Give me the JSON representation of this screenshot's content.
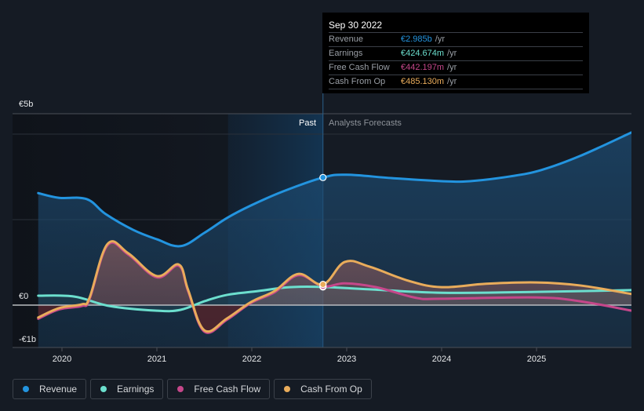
{
  "tooltip": {
    "date": "Sep 30 2022",
    "rows": [
      {
        "label": "Revenue",
        "value": "€2.985b",
        "unit": "/yr",
        "color": "#2394df"
      },
      {
        "label": "Earnings",
        "value": "€424.674m",
        "unit": "/yr",
        "color": "#6cdfce"
      },
      {
        "label": "Free Cash Flow",
        "value": "€442.197m",
        "unit": "/yr",
        "color": "#c5478a"
      },
      {
        "label": "Cash From Op",
        "value": "€485.130m",
        "unit": "/yr",
        "color": "#e9ac5b"
      }
    ]
  },
  "legend": [
    {
      "label": "Revenue",
      "color": "#2394df"
    },
    {
      "label": "Earnings",
      "color": "#6cdfce"
    },
    {
      "label": "Free Cash Flow",
      "color": "#c5478a"
    },
    {
      "label": "Cash From Op",
      "color": "#e9ac5b"
    }
  ],
  "chart_data": {
    "type": "line",
    "title": "",
    "xlabel": "",
    "ylabel": "",
    "x_ticks": [
      "2020",
      "2021",
      "2022",
      "2023",
      "2024",
      "2025"
    ],
    "y_tick_labels": {
      "top": "€5b",
      "zero": "€0",
      "bottom": "-€1b"
    },
    "xlim": [
      2019.75,
      2026.0
    ],
    "ylim": [
      -1,
      5
    ],
    "past_label": "Past",
    "forecast_label": "Analysts Forecasts",
    "divider_x": 2022.75,
    "highlight_start_x": 2021.75,
    "units": "EUR billions",
    "series": [
      {
        "name": "Revenue",
        "color": "#2394df",
        "points": [
          [
            2019.75,
            2.62
          ],
          [
            2019.97,
            2.51
          ],
          [
            2020.26,
            2.48
          ],
          [
            2020.46,
            2.13
          ],
          [
            2020.75,
            1.76
          ],
          [
            2021.0,
            1.54
          ],
          [
            2021.25,
            1.38
          ],
          [
            2021.5,
            1.69
          ],
          [
            2021.74,
            2.04
          ],
          [
            2021.99,
            2.33
          ],
          [
            2022.33,
            2.66
          ],
          [
            2022.75,
            2.985
          ],
          [
            2023.0,
            3.05
          ],
          [
            2023.48,
            2.97
          ],
          [
            2024.0,
            2.9
          ],
          [
            2024.3,
            2.9
          ],
          [
            2024.72,
            3.01
          ],
          [
            2025.05,
            3.16
          ],
          [
            2025.46,
            3.49
          ],
          [
            2026.0,
            4.04
          ]
        ]
      },
      {
        "name": "Earnings",
        "color": "#6cdfce",
        "points": [
          [
            2019.75,
            0.22
          ],
          [
            2020.13,
            0.2
          ],
          [
            2020.5,
            -0.02
          ],
          [
            2021.0,
            -0.13
          ],
          [
            2021.25,
            -0.11
          ],
          [
            2021.5,
            0.09
          ],
          [
            2021.74,
            0.24
          ],
          [
            2022.07,
            0.33
          ],
          [
            2022.4,
            0.42
          ],
          [
            2022.75,
            0.425
          ],
          [
            2023.24,
            0.37
          ],
          [
            2024.0,
            0.29
          ],
          [
            2025.0,
            0.31
          ],
          [
            2026.0,
            0.35
          ]
        ]
      },
      {
        "name": "Free Cash Flow",
        "color": "#c5478a",
        "points": [
          [
            2019.75,
            -0.32
          ],
          [
            2019.97,
            -0.1
          ],
          [
            2020.21,
            -0.02
          ],
          [
            2020.29,
            0.14
          ],
          [
            2020.48,
            1.4
          ],
          [
            2020.7,
            1.18
          ],
          [
            2021.0,
            0.65
          ],
          [
            2021.23,
            0.92
          ],
          [
            2021.33,
            0.32
          ],
          [
            2021.5,
            -0.62
          ],
          [
            2021.74,
            -0.34
          ],
          [
            2021.99,
            0.05
          ],
          [
            2022.24,
            0.3
          ],
          [
            2022.49,
            0.7
          ],
          [
            2022.75,
            0.442
          ],
          [
            2022.98,
            0.51
          ],
          [
            2023.31,
            0.42
          ],
          [
            2023.73,
            0.17
          ],
          [
            2024.0,
            0.15
          ],
          [
            2025.0,
            0.18
          ],
          [
            2025.46,
            0.09
          ],
          [
            2026.0,
            -0.13
          ]
        ]
      },
      {
        "name": "Cash From Op",
        "color": "#e9ac5b",
        "points": [
          [
            2019.75,
            -0.29
          ],
          [
            2019.97,
            -0.07
          ],
          [
            2020.21,
            0.02
          ],
          [
            2020.29,
            0.17
          ],
          [
            2020.48,
            1.43
          ],
          [
            2020.7,
            1.21
          ],
          [
            2021.0,
            0.68
          ],
          [
            2021.23,
            0.95
          ],
          [
            2021.33,
            0.35
          ],
          [
            2021.5,
            -0.59
          ],
          [
            2021.74,
            -0.31
          ],
          [
            2021.99,
            0.07
          ],
          [
            2022.24,
            0.33
          ],
          [
            2022.49,
            0.73
          ],
          [
            2022.75,
            0.485
          ],
          [
            2022.98,
            1.01
          ],
          [
            2023.24,
            0.9
          ],
          [
            2023.65,
            0.57
          ],
          [
            2024.0,
            0.42
          ],
          [
            2024.47,
            0.5
          ],
          [
            2025.0,
            0.53
          ],
          [
            2025.46,
            0.46
          ],
          [
            2026.0,
            0.26
          ]
        ]
      }
    ]
  }
}
